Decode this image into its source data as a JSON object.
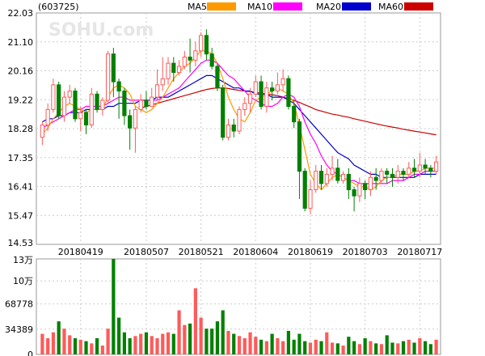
{
  "chart_data": {
    "type": "candlestick",
    "stock_code": "(603725)",
    "watermark": "SOHU.com",
    "x_labels": [
      "20180419",
      "20180507",
      "20180521",
      "20180604",
      "20180619",
      "20180703",
      "20180717"
    ],
    "price_ticks": [
      "22.03",
      "21.10",
      "20.16",
      "19.22",
      "18.28",
      "17.35",
      "16.41",
      "15.47",
      "14.53"
    ],
    "price_range": [
      14.53,
      22.03
    ],
    "legend": [
      {
        "name": "MA5",
        "color": "#ff9900"
      },
      {
        "name": "MA10",
        "color": "#ff00ff"
      },
      {
        "name": "MA20",
        "color": "#0000cc"
      },
      {
        "name": "MA60",
        "color": "#cc0000"
      }
    ],
    "up_color": "#ff5a5a",
    "down_color": "#008000",
    "candles": [
      [
        18.0,
        18.4,
        17.75,
        18.5
      ],
      [
        18.4,
        18.9,
        18.2,
        19.1
      ],
      [
        18.9,
        19.7,
        18.8,
        19.9
      ],
      [
        19.7,
        18.7,
        18.6,
        19.8
      ],
      [
        18.7,
        19.3,
        18.5,
        19.5
      ],
      [
        19.3,
        19.5,
        19.1,
        19.7
      ],
      [
        19.5,
        18.6,
        18.5,
        19.6
      ],
      [
        18.6,
        18.8,
        18.2,
        19.0
      ],
      [
        18.8,
        18.4,
        18.1,
        18.9
      ],
      [
        18.4,
        19.4,
        18.3,
        19.6
      ],
      [
        19.4,
        18.9,
        18.8,
        19.5
      ],
      [
        18.9,
        19.2,
        18.7,
        19.3
      ],
      [
        19.2,
        20.7,
        19.1,
        20.8
      ],
      [
        20.7,
        19.8,
        19.3,
        20.9
      ],
      [
        19.8,
        19.5,
        18.6,
        19.9
      ],
      [
        19.5,
        18.7,
        18.4,
        19.6
      ],
      [
        18.7,
        18.3,
        17.6,
        18.9
      ],
      [
        18.3,
        18.9,
        17.5,
        19.0
      ],
      [
        18.9,
        19.2,
        18.8,
        19.4
      ],
      [
        19.2,
        19.0,
        18.9,
        19.5
      ],
      [
        19.0,
        19.3,
        19.0,
        19.6
      ],
      [
        19.3,
        19.7,
        19.2,
        20.2
      ],
      [
        19.7,
        19.9,
        19.5,
        20.6
      ],
      [
        19.9,
        20.4,
        19.7,
        20.6
      ],
      [
        20.4,
        20.1,
        19.8,
        20.6
      ],
      [
        20.1,
        20.3,
        20.0,
        20.5
      ],
      [
        20.3,
        20.6,
        20.2,
        20.8
      ],
      [
        20.6,
        20.5,
        20.1,
        21.2
      ],
      [
        20.5,
        20.8,
        20.3,
        21.1
      ],
      [
        20.8,
        21.3,
        20.6,
        21.4
      ],
      [
        21.3,
        20.7,
        20.5,
        21.5
      ],
      [
        20.7,
        20.3,
        20.2,
        20.9
      ],
      [
        20.3,
        19.6,
        19.5,
        20.4
      ],
      [
        19.6,
        18.0,
        17.9,
        19.7
      ],
      [
        18.0,
        18.4,
        17.9,
        18.6
      ],
      [
        18.4,
        18.2,
        18.0,
        18.6
      ],
      [
        18.2,
        18.9,
        18.1,
        19.0
      ],
      [
        18.9,
        19.1,
        18.7,
        19.3
      ],
      [
        19.1,
        19.4,
        18.8,
        19.6
      ],
      [
        19.4,
        19.8,
        19.3,
        20.0
      ],
      [
        19.8,
        19.0,
        18.9,
        20.0
      ],
      [
        19.0,
        19.6,
        18.8,
        19.8
      ],
      [
        19.6,
        19.5,
        19.2,
        19.8
      ],
      [
        19.5,
        19.7,
        19.4,
        20.1
      ],
      [
        19.7,
        19.9,
        19.5,
        20.2
      ],
      [
        19.9,
        19.0,
        18.9,
        20.0
      ],
      [
        19.0,
        18.5,
        18.3,
        19.2
      ],
      [
        18.5,
        16.9,
        16.0,
        18.6
      ],
      [
        16.9,
        15.7,
        15.6,
        17.0
      ],
      [
        15.7,
        16.3,
        15.5,
        16.6
      ],
      [
        16.3,
        16.9,
        16.2,
        17.1
      ],
      [
        16.9,
        16.5,
        16.3,
        17.1
      ],
      [
        16.5,
        16.8,
        16.4,
        17.0
      ],
      [
        16.8,
        17.0,
        16.6,
        17.4
      ],
      [
        17.0,
        16.6,
        16.5,
        17.3
      ],
      [
        16.6,
        16.8,
        16.5,
        16.9
      ],
      [
        16.8,
        16.3,
        16.0,
        17.0
      ],
      [
        16.3,
        16.1,
        15.6,
        16.4
      ],
      [
        16.1,
        16.5,
        15.9,
        16.7
      ],
      [
        16.5,
        16.3,
        16.0,
        16.6
      ],
      [
        16.3,
        16.7,
        16.1,
        16.9
      ],
      [
        16.7,
        16.6,
        16.3,
        17.0
      ],
      [
        16.6,
        16.9,
        16.5,
        17.0
      ],
      [
        16.9,
        16.8,
        16.5,
        17.0
      ],
      [
        16.8,
        16.7,
        16.4,
        17.0
      ],
      [
        16.7,
        16.9,
        16.5,
        17.1
      ],
      [
        16.9,
        16.8,
        16.6,
        17.0
      ],
      [
        16.8,
        17.0,
        16.7,
        17.2
      ],
      [
        17.0,
        16.9,
        16.7,
        17.3
      ],
      [
        16.9,
        17.1,
        16.7,
        17.5
      ],
      [
        17.1,
        17.0,
        16.8,
        17.3
      ],
      [
        17.0,
        16.9,
        16.7,
        17.1
      ],
      [
        16.9,
        17.2,
        16.8,
        17.4
      ]
    ],
    "ma": {
      "MA5": [
        18.1,
        18.3,
        18.6,
        18.8,
        19.0,
        19.1,
        19.0,
        18.9,
        18.8,
        18.9,
        18.9,
        18.9,
        19.3,
        19.6,
        19.7,
        19.6,
        19.4,
        19.0,
        18.9,
        18.8,
        18.9,
        19.1,
        19.3,
        19.6,
        19.9,
        20.1,
        20.3,
        20.4,
        20.6,
        20.8,
        20.8,
        20.7,
        20.4,
        19.9,
        19.3,
        18.9,
        18.6,
        18.5,
        18.8,
        19.2,
        19.3,
        19.4,
        19.5,
        19.6,
        19.5,
        19.4,
        19.1,
        18.4,
        17.6,
        16.8,
        16.5,
        16.3,
        16.5,
        16.7,
        16.8,
        16.7,
        16.6,
        16.5,
        16.4,
        16.4,
        16.3,
        16.4,
        16.6,
        16.7,
        16.7,
        16.8,
        16.8,
        16.8,
        16.9,
        16.9,
        17.0,
        17.0,
        17.0
      ],
      "MA10": [
        18.3,
        18.4,
        18.5,
        18.6,
        18.7,
        18.8,
        18.9,
        18.9,
        19.0,
        19.0,
        19.0,
        19.0,
        19.1,
        19.2,
        19.3,
        19.3,
        19.2,
        19.2,
        19.2,
        19.2,
        19.2,
        19.2,
        19.3,
        19.4,
        19.5,
        19.6,
        19.8,
        20.0,
        20.2,
        20.4,
        20.5,
        20.5,
        20.4,
        20.2,
        20.0,
        19.9,
        19.7,
        19.5,
        19.3,
        19.2,
        19.1,
        19.0,
        19.0,
        19.1,
        19.3,
        19.4,
        19.3,
        19.0,
        18.5,
        18.1,
        17.8,
        17.4,
        17.1,
        16.9,
        16.8,
        16.7,
        16.6,
        16.6,
        16.5,
        16.5,
        16.5,
        16.5,
        16.5,
        16.5,
        16.6,
        16.6,
        16.6,
        16.7,
        16.8,
        16.8,
        16.9,
        16.9,
        16.9
      ],
      "MA20": [
        18.5,
        18.6,
        18.6,
        18.7,
        18.7,
        18.8,
        18.8,
        18.8,
        18.9,
        18.9,
        18.9,
        18.9,
        19.0,
        19.0,
        19.1,
        19.1,
        19.1,
        19.1,
        19.2,
        19.2,
        19.2,
        19.3,
        19.3,
        19.3,
        19.4,
        19.5,
        19.6,
        19.7,
        19.8,
        19.9,
        20.0,
        20.0,
        19.9,
        19.8,
        19.7,
        19.6,
        19.6,
        19.5,
        19.5,
        19.4,
        19.4,
        19.4,
        19.3,
        19.3,
        19.3,
        19.2,
        19.1,
        18.9,
        18.7,
        18.5,
        18.3,
        18.1,
        17.9,
        17.7,
        17.5,
        17.4,
        17.3,
        17.1,
        17.0,
        16.9,
        16.8,
        16.8,
        16.7,
        16.7,
        16.7,
        16.7,
        16.7,
        16.7,
        16.7,
        16.8,
        16.8,
        16.8,
        16.8
      ],
      "MA60": [
        null,
        null,
        null,
        null,
        null,
        null,
        null,
        null,
        null,
        null,
        null,
        null,
        null,
        null,
        null,
        null,
        null,
        null,
        18.95,
        19.0,
        19.05,
        19.1,
        19.15,
        19.2,
        19.25,
        19.3,
        19.35,
        19.4,
        19.45,
        19.5,
        19.55,
        19.58,
        19.6,
        19.6,
        19.58,
        19.55,
        19.52,
        19.5,
        19.48,
        19.45,
        19.43,
        19.4,
        19.38,
        19.35,
        19.3,
        19.25,
        19.2,
        19.13,
        19.05,
        18.98,
        18.9,
        18.85,
        18.8,
        18.75,
        18.72,
        18.68,
        18.65,
        18.6,
        18.56,
        18.52,
        18.48,
        18.44,
        18.4,
        18.36,
        18.33,
        18.3,
        18.26,
        18.23,
        18.2,
        18.17,
        18.14,
        18.11,
        18.08
      ]
    },
    "volume_ticks": [
      "13万",
      "10万",
      "68778",
      "34389",
      "0"
    ],
    "volume_max": 130000,
    "volumes": [
      28000,
      22000,
      30000,
      45000,
      35000,
      26000,
      22000,
      20000,
      18000,
      15000,
      22000,
      12000,
      35000,
      130000,
      50000,
      30000,
      22000,
      25000,
      28000,
      30000,
      25000,
      22000,
      28000,
      30000,
      28000,
      60000,
      40000,
      42000,
      90000,
      50000,
      35000,
      35000,
      45000,
      60000,
      32000,
      28000,
      25000,
      22000,
      30000,
      24000,
      20000,
      18000,
      28000,
      22000,
      18000,
      32000,
      20000,
      28000,
      18000,
      16000,
      20000,
      18000,
      30000,
      16000,
      15000,
      12000,
      24000,
      18000,
      14000,
      22000,
      18000,
      15000,
      14000,
      26000,
      16000,
      15000,
      18000,
      20000,
      16000,
      22000,
      18000,
      14000,
      20000
    ]
  }
}
